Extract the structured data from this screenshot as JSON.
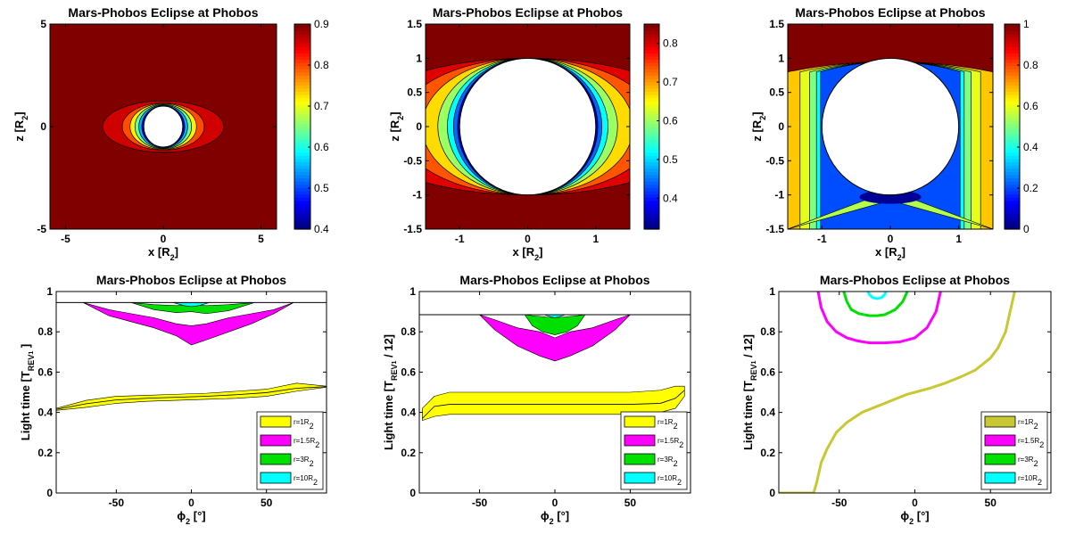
{
  "chart_data": [
    {
      "id": "A",
      "type": "heatmap",
      "title": "Mars-Phobos Eclipse at Phobos",
      "xlabel": "x [R2]",
      "ylabel": "z [R2]",
      "xlim": [
        -5.8,
        5.8
      ],
      "ylim": [
        -5,
        5
      ],
      "xticks": [
        -5,
        0,
        5
      ],
      "yticks": [
        -5,
        0,
        5
      ],
      "clim": [
        0.4,
        0.9
      ],
      "cticks": [
        0.4,
        0.5,
        0.6,
        0.7,
        0.8,
        0.9
      ],
      "colormap": "jet",
      "circle_radius": 1
    },
    {
      "id": "B",
      "type": "heatmap",
      "title": "Mars-Phobos Eclipse at Phobos",
      "xlabel": "x [R2]",
      "ylabel": "z [R2]",
      "xlim": [
        -1.5,
        1.5
      ],
      "ylim": [
        -1.5,
        1.5
      ],
      "xticks": [
        -1,
        0,
        1
      ],
      "yticks": [
        -1.5,
        -1,
        -0.5,
        0,
        0.5,
        1,
        1.5
      ],
      "clim": [
        0.32,
        0.85
      ],
      "cticks": [
        0.4,
        0.5,
        0.6,
        0.7,
        0.8
      ],
      "colormap": "jet",
      "circle_radius": 1
    },
    {
      "id": "C",
      "type": "heatmap",
      "title": "Mars-Phobos Eclipse at Phobos",
      "xlabel": "x [R2]",
      "ylabel": "z [R2]",
      "xlim": [
        -1.5,
        1.5
      ],
      "ylim": [
        -1.5,
        1.5
      ],
      "xticks": [
        -1,
        0,
        1
      ],
      "yticks": [
        -1.5,
        -1,
        -0.5,
        0,
        0.5,
        1,
        1.5
      ],
      "clim": [
        0,
        1
      ],
      "cticks": [
        0,
        0.2,
        0.4,
        0.6,
        0.8,
        1
      ],
      "colormap": "jet",
      "circle_radius": 1
    },
    {
      "id": "D",
      "type": "area",
      "title": "Mars-Phobos Eclipse at Phobos",
      "xlabel": "ϕ2 [°]",
      "ylabel": "Light time [TREV1 ]",
      "xlim": [
        -90,
        90
      ],
      "ylim": [
        0,
        1
      ],
      "xticks": [
        -50,
        0,
        50
      ],
      "yticks": [
        0,
        0.2,
        0.4,
        0.6,
        0.8,
        1
      ],
      "hline": 0.945,
      "legend": [
        "r=1R2",
        "r=1.5R2",
        "r=3R2",
        "r=10R2"
      ],
      "legend_position": "bottom-right",
      "series": [
        {
          "name": "r=1R2",
          "color": "#ffff00",
          "x": [
            -90,
            -70,
            -50,
            -30,
            -10,
            10,
            30,
            50,
            70,
            90
          ],
          "upper": [
            0.42,
            0.46,
            0.48,
            0.485,
            0.49,
            0.495,
            0.505,
            0.515,
            0.545,
            0.53
          ],
          "lower": [
            0.41,
            0.425,
            0.445,
            0.455,
            0.46,
            0.465,
            0.47,
            0.48,
            0.505,
            0.525
          ],
          "mid": [
            0.415,
            0.443,
            0.462,
            0.47,
            0.475,
            0.48,
            0.488,
            0.498,
            0.52,
            0.528
          ]
        },
        {
          "name": "r=1.5R2",
          "color": "#ff00ff",
          "x": [
            -72,
            -55,
            -40,
            -25,
            -10,
            0,
            10,
            25,
            40,
            55,
            68
          ],
          "upper": [
            0.945,
            0.91,
            0.89,
            0.87,
            0.84,
            0.83,
            0.84,
            0.87,
            0.89,
            0.91,
            0.945
          ],
          "lower": [
            0.945,
            0.88,
            0.85,
            0.82,
            0.78,
            0.735,
            0.76,
            0.8,
            0.84,
            0.89,
            0.945
          ]
        },
        {
          "name": "r=3R2",
          "color": "#00e000",
          "x": [
            -40,
            -25,
            -10,
            0,
            10,
            25,
            42
          ],
          "upper": [
            0.945,
            0.935,
            0.93,
            0.935,
            0.93,
            0.935,
            0.945
          ],
          "lower": [
            0.945,
            0.91,
            0.895,
            0.9,
            0.89,
            0.905,
            0.945
          ]
        },
        {
          "name": "r=10R2",
          "color": "#00ffff",
          "x": [
            -12,
            -5,
            0,
            5,
            12
          ],
          "upper": [
            0.945,
            0.945,
            0.945,
            0.945,
            0.945
          ],
          "lower": [
            0.945,
            0.93,
            0.925,
            0.93,
            0.945
          ]
        }
      ]
    },
    {
      "id": "E",
      "type": "area",
      "title": "Mars-Phobos Eclipse at Phobos",
      "xlabel": "ϕ2 [°]",
      "ylabel": "Light time [TREV1 / 12]",
      "xlim": [
        -90,
        90
      ],
      "ylim": [
        0,
        1
      ],
      "xticks": [
        -50,
        0,
        50
      ],
      "yticks": [
        0,
        0.2,
        0.4,
        0.6,
        0.8,
        1
      ],
      "hline": 0.885,
      "legend": [
        "r=1R2",
        "r=1.5R2",
        "r=3R2",
        "r=10R2"
      ],
      "legend_position": "bottom-right",
      "series": [
        {
          "name": "r=1R2",
          "color": "#ffff00",
          "x": [
            -88,
            -80,
            -70,
            -50,
            -25,
            0,
            25,
            50,
            70,
            80,
            86
          ],
          "upper": [
            0.42,
            0.48,
            0.5,
            0.5,
            0.5,
            0.5,
            0.5,
            0.5,
            0.51,
            0.53,
            0.53
          ],
          "lower": [
            0.36,
            0.38,
            0.39,
            0.39,
            0.39,
            0.39,
            0.39,
            0.39,
            0.4,
            0.42,
            0.48
          ],
          "mid": [
            0.37,
            0.43,
            0.44,
            0.44,
            0.44,
            0.44,
            0.44,
            0.44,
            0.445,
            0.47,
            0.51
          ]
        },
        {
          "name": "r=1.5R2",
          "color": "#ff00ff",
          "x": [
            -50,
            -40,
            -25,
            -10,
            0,
            10,
            25,
            40,
            50
          ],
          "upper": [
            0.885,
            0.86,
            0.82,
            0.8,
            0.77,
            0.8,
            0.82,
            0.86,
            0.885
          ],
          "lower": [
            0.885,
            0.81,
            0.73,
            0.68,
            0.655,
            0.68,
            0.73,
            0.81,
            0.885
          ]
        },
        {
          "name": "r=3R2",
          "color": "#00e000",
          "x": [
            -20,
            -15,
            -8,
            0,
            8,
            15,
            20
          ],
          "upper": [
            0.885,
            0.88,
            0.875,
            0.87,
            0.875,
            0.88,
            0.885
          ],
          "lower": [
            0.885,
            0.83,
            0.8,
            0.785,
            0.8,
            0.83,
            0.885
          ]
        },
        {
          "name": "r=10R2",
          "color": "#00ffff",
          "x": [
            -7,
            -3,
            0,
            3,
            7
          ],
          "upper": [
            0.885,
            0.885,
            0.885,
            0.885,
            0.885
          ],
          "lower": [
            0.885,
            0.875,
            0.87,
            0.875,
            0.885
          ]
        }
      ]
    },
    {
      "id": "F",
      "type": "line",
      "title": "Mars-Phobos Eclipse at Phobos",
      "xlabel": "ϕ2 [°]",
      "ylabel": "Light time [TREV1 / 12]",
      "xlim": [
        -90,
        90
      ],
      "ylim": [
        0,
        1
      ],
      "xticks": [
        -50,
        0,
        50
      ],
      "yticks": [
        0,
        0.2,
        0.4,
        0.6,
        0.8,
        1
      ],
      "hline": 1.0,
      "legend": [
        "r=1R2",
        "r=1.5R2",
        "r=3R2",
        "r=10R2"
      ],
      "legend_position": "bottom-right",
      "series": [
        {
          "name": "r=1R2",
          "color": "#c8c832",
          "x": [
            -90,
            -67,
            -65,
            -62,
            -58,
            -52,
            -45,
            -35,
            -25,
            -15,
            -5,
            0,
            10,
            20,
            30,
            40,
            50,
            55,
            60,
            63,
            66
          ],
          "y": [
            0,
            0,
            0.05,
            0.15,
            0.22,
            0.3,
            0.35,
            0.4,
            0.43,
            0.46,
            0.49,
            0.5,
            0.52,
            0.545,
            0.575,
            0.61,
            0.67,
            0.72,
            0.8,
            0.9,
            1.0
          ]
        },
        {
          "name": "r=1.5R2",
          "color": "#ff00ff",
          "x": [
            -64,
            -62,
            -58,
            -52,
            -45,
            -38,
            -30,
            -20,
            -10,
            0,
            8,
            14,
            17
          ],
          "y": [
            1.0,
            0.92,
            0.85,
            0.8,
            0.77,
            0.755,
            0.745,
            0.745,
            0.75,
            0.77,
            0.82,
            0.9,
            1.0
          ]
        },
        {
          "name": "r=3R2",
          "color": "#00e000",
          "x": [
            -47,
            -45,
            -42,
            -37,
            -30,
            -25,
            -20,
            -13,
            -8,
            -5
          ],
          "y": [
            1.0,
            0.95,
            0.91,
            0.89,
            0.88,
            0.88,
            0.885,
            0.91,
            0.95,
            1.0
          ]
        },
        {
          "name": "r=10R2",
          "color": "#00ffff",
          "x": [
            -31,
            -30,
            -28,
            -25,
            -22,
            -20,
            -19
          ],
          "y": [
            1.0,
            0.985,
            0.97,
            0.965,
            0.97,
            0.985,
            1.0
          ]
        }
      ]
    }
  ]
}
